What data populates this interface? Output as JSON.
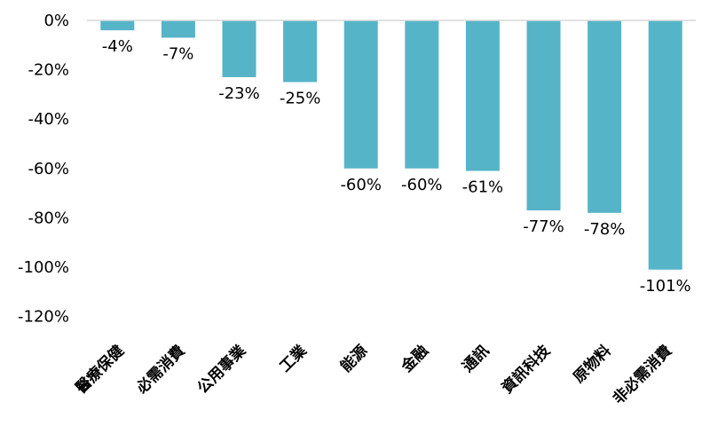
{
  "chart_data": {
    "type": "bar",
    "categories": [
      "醫療保健",
      "必需消費",
      "公用事業",
      "工業",
      "能源",
      "金融",
      "通訊",
      "資訊科技",
      "原物料",
      "非必需消費"
    ],
    "values": [
      -4,
      -7,
      -23,
      -25,
      -60,
      -60,
      -61,
      -77,
      -78,
      -101
    ],
    "data_labels": [
      "-4%",
      "-7%",
      "-23%",
      "-25%",
      "-60%",
      "-60%",
      "-61%",
      "-77%",
      "-78%",
      "-101%"
    ],
    "y_ticks": [
      0,
      -20,
      -40,
      -60,
      -80,
      -100,
      -120
    ],
    "y_tick_labels": [
      "0%",
      "-20%",
      "-40%",
      "-60%",
      "-80%",
      "-100%",
      "-120%"
    ],
    "ylim": [
      -120,
      0
    ],
    "grid": false,
    "legend": "none",
    "bar_color": "#56b4c8",
    "axis_color": "#d9d9d9"
  }
}
